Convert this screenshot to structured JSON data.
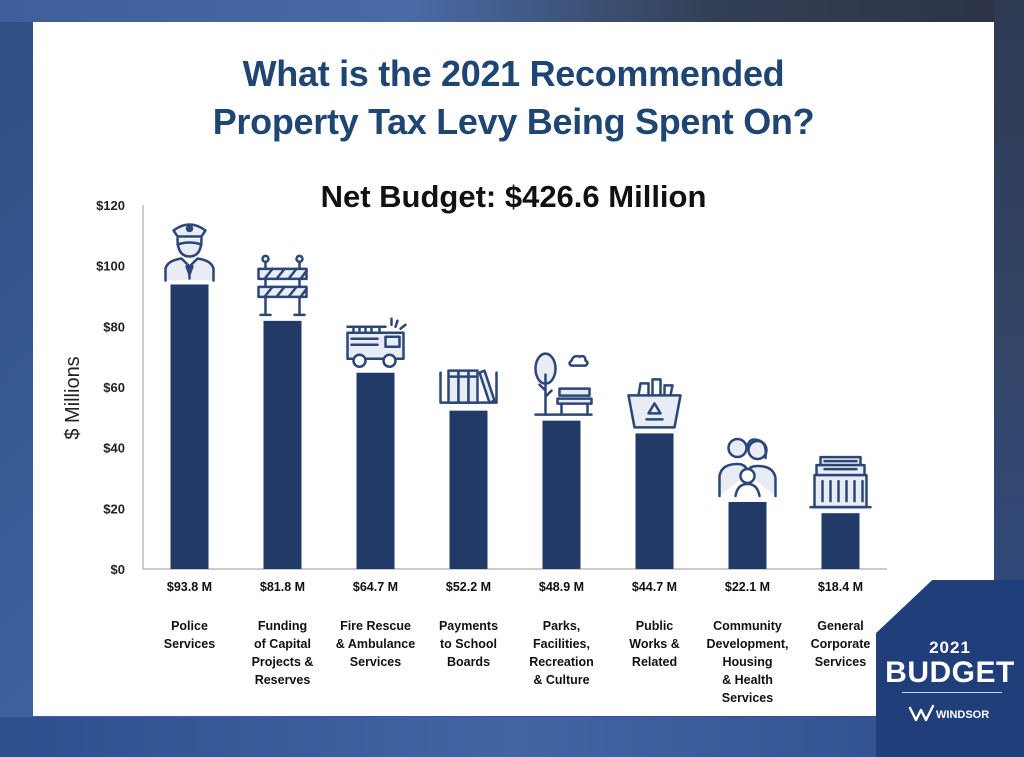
{
  "title_lines": [
    "What is the 2021 Recommended",
    "Property Tax Levy Being Spent On?"
  ],
  "subtitle": "Net Budget: $426.6 Million",
  "badge": {
    "year": "2021",
    "word": "BUDGET",
    "logo_text": "WINDSOR"
  },
  "colors": {
    "bar": "#223a68",
    "title": "#1f4673",
    "badge": "#1f3e7a",
    "icon_stroke": "#2b4677",
    "icon_fill": "#e8edf5"
  },
  "chart_data": {
    "type": "bar",
    "title": "What is the 2021 Recommended Property Tax Levy Being Spent On?",
    "subtitle": "Net Budget: $426.6 Million",
    "ylabel": "$ Millions",
    "xlabel": "",
    "ylim": [
      0,
      120
    ],
    "yticks": [
      0,
      20,
      40,
      60,
      80,
      100,
      120
    ],
    "ytick_labels": [
      "$0",
      "$20",
      "$40",
      "$60",
      "$80",
      "$100",
      "$120"
    ],
    "grid": false,
    "categories": [
      [
        "Police",
        "Services"
      ],
      [
        "Funding",
        "of Capital",
        "Projects &",
        "Reserves"
      ],
      [
        "Fire Rescue",
        "& Ambulance",
        "Services"
      ],
      [
        "Payments",
        "to School",
        "Boards"
      ],
      [
        "Parks,",
        "Facilities,",
        "Recreation",
        "& Culture"
      ],
      [
        "Public",
        "Works &",
        "Related"
      ],
      [
        "Community",
        "Development,",
        "Housing",
        "& Health",
        "Services"
      ],
      [
        "General",
        "Corporate",
        "Services"
      ]
    ],
    "values": [
      93.8,
      81.8,
      64.7,
      52.2,
      48.9,
      44.7,
      22.1,
      18.4
    ],
    "value_labels": [
      "$93.8 M",
      "$81.8 M",
      "$64.7 M",
      "$52.2 M",
      "$48.9 M",
      "$44.7 M",
      "$22.1 M",
      "$18.4 M"
    ],
    "icons": [
      "police-officer-icon",
      "road-barrier-icon",
      "fire-truck-icon",
      "books-icon",
      "park-bench-tree-icon",
      "recycling-bin-icon",
      "family-icon",
      "office-building-icon"
    ]
  }
}
